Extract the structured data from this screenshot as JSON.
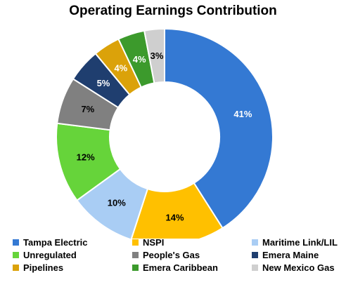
{
  "chart_data": {
    "type": "pie",
    "title": "Operating Earnings Contribution",
    "categories": [
      "Tampa Electric",
      "NSPI",
      "Maritime Link/LIL",
      "Unregulated",
      "People's Gas",
      "Emera Maine",
      "Pipelines",
      "Emera Caribbean",
      "New Mexico Gas"
    ],
    "values": [
      41,
      14,
      10,
      12,
      7,
      5,
      4,
      4,
      3
    ],
    "data_labels": [
      "41%",
      "14%",
      "10%",
      "12%",
      "7%",
      "5%",
      "4%",
      "4%",
      "3%"
    ],
    "slice_order": [
      "Tampa Electric",
      "NSPI",
      "Maritime Link/LIL",
      "Unregulated",
      "People's Gas",
      "Emera Maine",
      "Pipelines",
      "Emera Caribbean",
      "New Mexico Gas"
    ],
    "colors": [
      "#3479d3",
      "#ffc000",
      "#a9cdf4",
      "#66d43a",
      "#808080",
      "#1f3e6f",
      "#dba20a",
      "#3c9a2c",
      "#cfcfcf"
    ],
    "label_colors": [
      "#ffffff",
      "#000000",
      "#000000",
      "#000000",
      "#000000",
      "#ffffff",
      "#ffffff",
      "#ffffff",
      "#000000"
    ],
    "donut": true,
    "legend_position": "bottom",
    "legend_columns": 3
  }
}
